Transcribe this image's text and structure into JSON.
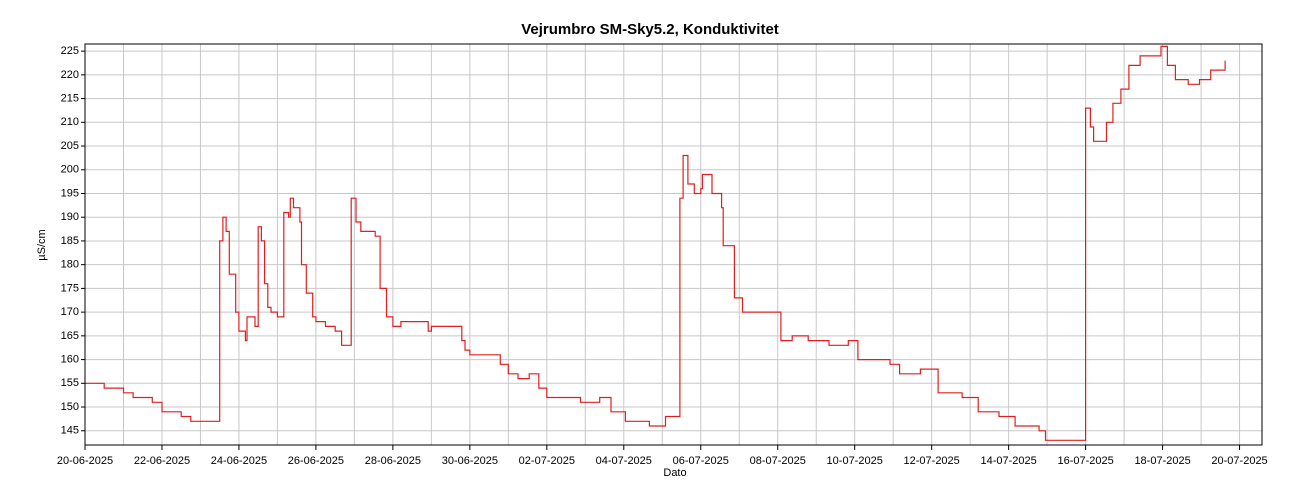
{
  "chart_data": {
    "type": "line",
    "title": "Vejrumbro SM-Sky5.2, Konduktivitet",
    "x_label": "Dato",
    "y_label": "µS/cm",
    "grid": true,
    "xlim": [
      "2025-06-20T00:00",
      "2025-07-20T14:00"
    ],
    "ylim": [
      142,
      226.5
    ],
    "yticks": [
      145,
      150,
      155,
      160,
      165,
      170,
      175,
      180,
      185,
      190,
      195,
      200,
      205,
      210,
      215,
      220,
      225
    ],
    "xticks": [
      {
        "value": "2025-06-20T00:00",
        "label": "20-06-2025"
      },
      {
        "value": "2025-06-22T00:00",
        "label": "22-06-2025"
      },
      {
        "value": "2025-06-24T00:00",
        "label": "24-06-2025"
      },
      {
        "value": "2025-06-26T00:00",
        "label": "26-06-2025"
      },
      {
        "value": "2025-06-28T00:00",
        "label": "28-06-2025"
      },
      {
        "value": "2025-06-30T00:00",
        "label": "30-06-2025"
      },
      {
        "value": "2025-07-02T00:00",
        "label": "02-07-2025"
      },
      {
        "value": "2025-07-04T00:00",
        "label": "04-07-2025"
      },
      {
        "value": "2025-07-06T00:00",
        "label": "06-07-2025"
      },
      {
        "value": "2025-07-08T00:00",
        "label": "08-07-2025"
      },
      {
        "value": "2025-07-10T00:00",
        "label": "10-07-2025"
      },
      {
        "value": "2025-07-12T00:00",
        "label": "12-07-2025"
      },
      {
        "value": "2025-07-14T00:00",
        "label": "14-07-2025"
      },
      {
        "value": "2025-07-16T00:00",
        "label": "16-07-2025"
      },
      {
        "value": "2025-07-18T00:00",
        "label": "18-07-2025"
      },
      {
        "value": "2025-07-20T00:00",
        "label": "20-07-2025"
      }
    ],
    "x": [
      "2025-06-20T00:00",
      "2025-06-20T12:00",
      "2025-06-21T00:00",
      "2025-06-21T06:00",
      "2025-06-21T18:00",
      "2025-06-22T00:00",
      "2025-06-22T12:00",
      "2025-06-22T18:00",
      "2025-06-23T11:00",
      "2025-06-23T12:00",
      "2025-06-23T14:00",
      "2025-06-23T16:00",
      "2025-06-23T18:00",
      "2025-06-23T22:00",
      "2025-06-24T00:00",
      "2025-06-24T04:00",
      "2025-06-24T05:00",
      "2025-06-24T10:00",
      "2025-06-24T12:00",
      "2025-06-24T14:00",
      "2025-06-24T16:00",
      "2025-06-24T18:00",
      "2025-06-24T20:00",
      "2025-06-25T00:00",
      "2025-06-25T03:00",
      "2025-06-25T04:00",
      "2025-06-25T07:00",
      "2025-06-25T08:00",
      "2025-06-25T10:00",
      "2025-06-25T14:00",
      "2025-06-25T15:00",
      "2025-06-25T18:00",
      "2025-06-25T22:00",
      "2025-06-26T00:00",
      "2025-06-26T06:00",
      "2025-06-26T12:00",
      "2025-06-26T16:00",
      "2025-06-26T20:00",
      "2025-06-26T22:00",
      "2025-06-27T01:00",
      "2025-06-27T04:00",
      "2025-06-27T13:00",
      "2025-06-27T16:00",
      "2025-06-27T20:00",
      "2025-06-28T00:00",
      "2025-06-28T05:00",
      "2025-06-28T17:00",
      "2025-06-28T22:00",
      "2025-06-29T00:00",
      "2025-06-29T14:00",
      "2025-06-29T19:00",
      "2025-06-29T21:00",
      "2025-06-30T00:00",
      "2025-06-30T12:00",
      "2025-06-30T19:00",
      "2025-07-01T00:00",
      "2025-07-01T06:00",
      "2025-07-01T13:00",
      "2025-07-01T19:00",
      "2025-07-02T00:00",
      "2025-07-02T08:00",
      "2025-07-02T21:00",
      "2025-07-03T09:00",
      "2025-07-03T16:00",
      "2025-07-04T01:00",
      "2025-07-04T16:00",
      "2025-07-05T02:00",
      "2025-07-05T10:00",
      "2025-07-05T11:00",
      "2025-07-05T13:00",
      "2025-07-05T16:00",
      "2025-07-05T20:00",
      "2025-07-06T00:00",
      "2025-07-06T01:00",
      "2025-07-06T07:00",
      "2025-07-06T13:00",
      "2025-07-06T14:00",
      "2025-07-06T21:00",
      "2025-07-07T02:00",
      "2025-07-07T18:00",
      "2025-07-08T02:00",
      "2025-07-08T09:00",
      "2025-07-08T19:00",
      "2025-07-09T08:00",
      "2025-07-09T20:00",
      "2025-07-10T02:00",
      "2025-07-10T22:00",
      "2025-07-11T04:00",
      "2025-07-11T17:00",
      "2025-07-12T04:00",
      "2025-07-12T19:00",
      "2025-07-13T05:00",
      "2025-07-13T18:00",
      "2025-07-14T04:00",
      "2025-07-14T19:00",
      "2025-07-14T23:00",
      "2025-07-15T22:00",
      "2025-07-15T23:00",
      "2025-07-16T00:00",
      "2025-07-16T03:00",
      "2025-07-16T05:00",
      "2025-07-16T13:00",
      "2025-07-16T17:00",
      "2025-07-16T22:00",
      "2025-07-17T03:00",
      "2025-07-17T10:00",
      "2025-07-17T23:00",
      "2025-07-18T03:00",
      "2025-07-18T08:00",
      "2025-07-18T16:00",
      "2025-07-18T23:00",
      "2025-07-19T06:00",
      "2025-07-19T15:00"
    ],
    "series": [
      {
        "name": "Konduktivitet",
        "color": "#e02020",
        "values": [
          155,
          154,
          153,
          152,
          151,
          149,
          148,
          147,
          147,
          185,
          190,
          187,
          178,
          170,
          166,
          164,
          169,
          167,
          188,
          185,
          176,
          171,
          170,
          169,
          169,
          191,
          190,
          194,
          192,
          189,
          180,
          174,
          169,
          168,
          167,
          166,
          163,
          163,
          194,
          189,
          187,
          186,
          175,
          169,
          167,
          168,
          168,
          166,
          167,
          167,
          164,
          162,
          161,
          161,
          159,
          157,
          156,
          157,
          154,
          152,
          152,
          151,
          152,
          149,
          147,
          146,
          148,
          148,
          194,
          203,
          197,
          195,
          196,
          199,
          195,
          192,
          184,
          173,
          170,
          170,
          164,
          165,
          164,
          163,
          164,
          160,
          159,
          157,
          158,
          153,
          152,
          149,
          148,
          146,
          145,
          143,
          143,
          143,
          213,
          209,
          206,
          210,
          214,
          217,
          222,
          224,
          226,
          222,
          219,
          218,
          219,
          221,
          223
        ]
      }
    ]
  }
}
